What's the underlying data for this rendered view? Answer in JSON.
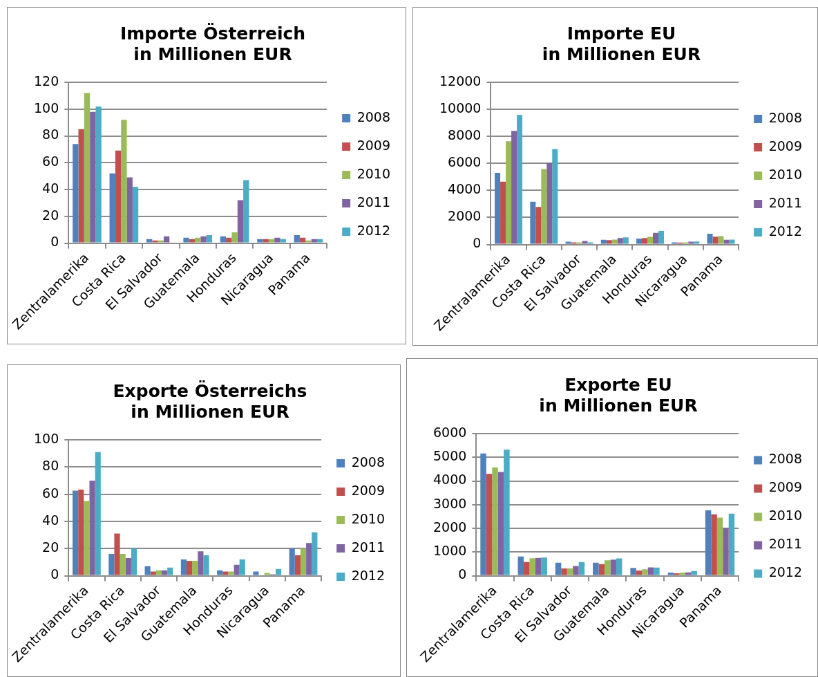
{
  "chart_data": [
    {
      "type": "bar",
      "title": "Importe Österreich\nin Millionen EUR",
      "categories": [
        "Zentralamerika",
        "Costa Rica",
        "El Salvador",
        "Guatemala",
        "Honduras",
        "Nicaragua",
        "Panama"
      ],
      "ylim": [
        0,
        120
      ],
      "yticks": [
        0,
        20,
        40,
        60,
        80,
        100,
        120
      ],
      "grid": "y",
      "legend": "right",
      "series": [
        {
          "name": "2008",
          "color": "#4f81bd",
          "values": [
            74,
            52,
            3,
            4,
            5,
            3,
            6
          ]
        },
        {
          "name": "2009",
          "color": "#c0504d",
          "values": [
            85,
            69,
            2,
            3,
            4,
            3,
            4
          ]
        },
        {
          "name": "2010",
          "color": "#9bbb59",
          "values": [
            112,
            92,
            2,
            4,
            8,
            3,
            2
          ]
        },
        {
          "name": "2011",
          "color": "#8064a2",
          "values": [
            98,
            49,
            5,
            5,
            32,
            4,
            3
          ]
        },
        {
          "name": "2012",
          "color": "#4bacc6",
          "values": [
            102,
            42,
            0.5,
            6,
            47,
            3,
            3
          ]
        }
      ]
    },
    {
      "type": "bar",
      "title": "Importe EU\nin Millionen EUR",
      "categories": [
        "Zentralamerika",
        "Costa Rica",
        "El Salvador",
        "Guatemala",
        "Honduras",
        "Nicaragua",
        "Panama"
      ],
      "ylim": [
        0,
        12000
      ],
      "yticks": [
        0,
        2000,
        4000,
        6000,
        8000,
        10000,
        12000
      ],
      "grid": "y",
      "legend": "right",
      "series": [
        {
          "name": "2008",
          "color": "#4f81bd",
          "values": [
            5300,
            3160,
            200,
            340,
            440,
            160,
            800
          ]
        },
        {
          "name": "2009",
          "color": "#c0504d",
          "values": [
            4640,
            2780,
            160,
            320,
            480,
            140,
            580
          ]
        },
        {
          "name": "2010",
          "color": "#9bbb59",
          "values": [
            7640,
            5580,
            160,
            360,
            580,
            160,
            620
          ]
        },
        {
          "name": "2011",
          "color": "#8064a2",
          "values": [
            8400,
            6040,
            260,
            480,
            860,
            200,
            340
          ]
        },
        {
          "name": "2012",
          "color": "#4bacc6",
          "values": [
            9580,
            7060,
            160,
            520,
            1000,
            220,
            360
          ]
        }
      ]
    },
    {
      "type": "bar",
      "title": "Exporte Österreichs\nin Millionen EUR",
      "categories": [
        "Zentralamerika",
        "Costa Rica",
        "El Salvador",
        "Guatemala",
        "Honduras",
        "Nicaragua",
        "Panama"
      ],
      "ylim": [
        0,
        100
      ],
      "yticks": [
        0,
        20,
        40,
        60,
        80,
        100
      ],
      "grid": "y",
      "legend": "right",
      "series": [
        {
          "name": "2008",
          "color": "#4f81bd",
          "values": [
            62.6,
            16,
            7,
            12,
            4,
            3,
            20
          ]
        },
        {
          "name": "2009",
          "color": "#c0504d",
          "values": [
            63.4,
            31,
            3,
            11,
            3,
            0.5,
            15
          ]
        },
        {
          "name": "2010",
          "color": "#9bbb59",
          "values": [
            55,
            16,
            4,
            11,
            3,
            2,
            20
          ]
        },
        {
          "name": "2011",
          "color": "#8064a2",
          "values": [
            70,
            13,
            4,
            18,
            8,
            1,
            24
          ]
        },
        {
          "name": "2012",
          "color": "#4bacc6",
          "values": [
            91,
            20,
            6,
            15,
            12,
            5,
            32
          ]
        }
      ]
    },
    {
      "type": "bar",
      "title": "Exporte EU\nin Millionen EUR",
      "categories": [
        "Zentralamerika",
        "Costa Rica",
        "El Salvador",
        "Guatemala",
        "Honduras",
        "Nicaragua",
        "Panama"
      ],
      "ylim": [
        0,
        6000
      ],
      "yticks": [
        0,
        1000,
        2000,
        3000,
        4000,
        5000,
        6000
      ],
      "grid": "y",
      "legend": "right",
      "series": [
        {
          "name": "2008",
          "color": "#4f81bd",
          "values": [
            5160,
            810,
            550,
            550,
            330,
            130,
            2760
          ]
        },
        {
          "name": "2009",
          "color": "#c0504d",
          "values": [
            4300,
            580,
            310,
            490,
            220,
            100,
            2590
          ]
        },
        {
          "name": "2010",
          "color": "#9bbb59",
          "values": [
            4570,
            740,
            310,
            650,
            270,
            130,
            2450
          ]
        },
        {
          "name": "2011",
          "color": "#8064a2",
          "values": [
            4380,
            750,
            410,
            680,
            350,
            140,
            2010
          ]
        },
        {
          "name": "2012",
          "color": "#4bacc6",
          "values": [
            5320,
            770,
            580,
            730,
            340,
            200,
            2620
          ]
        }
      ]
    }
  ]
}
